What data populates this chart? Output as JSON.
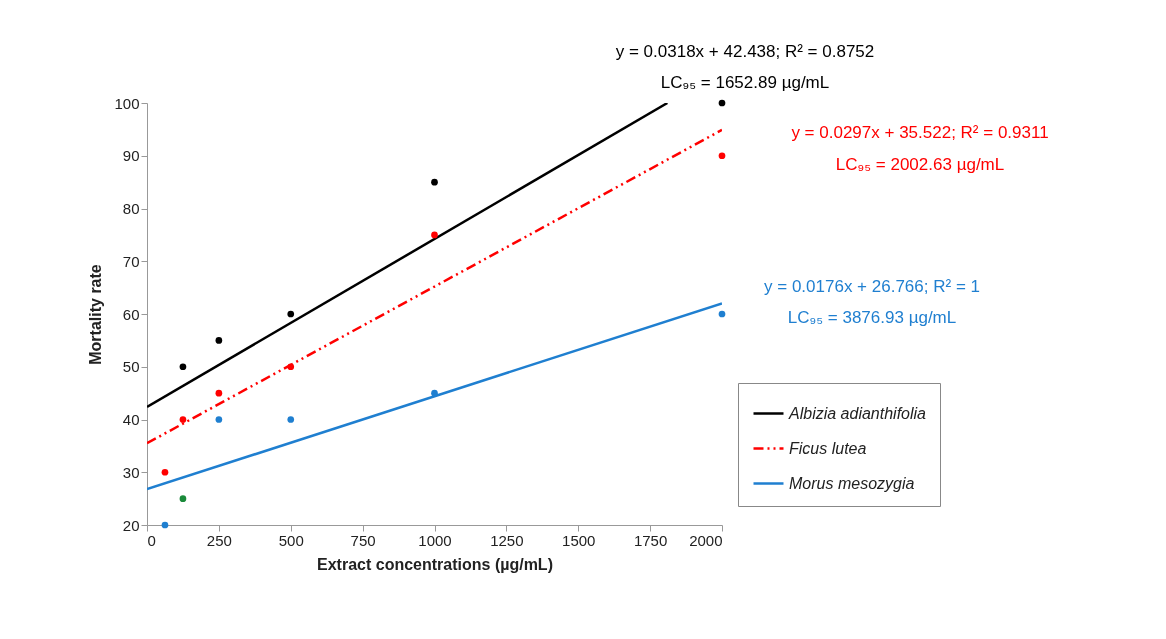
{
  "chart_data": {
    "type": "scatter",
    "xlabel": "Extract concentrations (µg/mL)",
    "ylabel": "Mortality rate",
    "xlim": [
      0,
      2000
    ],
    "xticks": [
      0,
      250,
      500,
      750,
      1000,
      1250,
      1500,
      1750,
      2000
    ],
    "ylim": [
      20,
      100
    ],
    "yticks": [
      20,
      30,
      40,
      50,
      60,
      70,
      80,
      90,
      100
    ],
    "grid": false,
    "legend": "bottom right",
    "marker": "circle",
    "series": [
      {
        "color": "#000000",
        "x": [
          125,
          250,
          500,
          1000,
          2000
        ],
        "values": [
          50,
          55,
          60,
          85,
          100
        ]
      },
      {
        "color": "#ff0000",
        "x": [
          62.5,
          125,
          250,
          500,
          1000,
          2000
        ],
        "values": [
          30,
          40,
          45,
          50,
          75,
          90
        ]
      },
      {
        "x": [
          62.5,
          125,
          250,
          500,
          1000,
          2000
        ],
        "values": [
          20,
          25,
          40,
          40,
          45,
          60
        ],
        "colors": [
          "#1f7fd0",
          "#1a8a3a",
          "#1f7fd0",
          "#1f7fd0",
          "#1f7fd0",
          "#1f7fd0"
        ]
      },
      {
        "type": "line",
        "name": "Albizia adianthifolia",
        "color": "#000000",
        "line_style": "solid",
        "marker": "none",
        "x": [
          0,
          1810
        ],
        "values": [
          42.4,
          100
        ]
      },
      {
        "type": "line",
        "name": "Ficus lutea",
        "color": "#ff0000",
        "line_style": "dashed",
        "marker": "none",
        "x": [
          0,
          2000
        ],
        "values": [
          35.5,
          94.9
        ]
      },
      {
        "type": "line",
        "name": "Morus mesozygia",
        "color": "#1f7fd0",
        "line_style": "solid",
        "marker": "none",
        "x": [
          0,
          2000
        ],
        "values": [
          26.8,
          62
        ]
      }
    ],
    "annotations": [
      "y = 0.0318x + 42.438; R² = 0.8752",
      "LC₉₅ = 1652.89 µg/mL",
      "y = 0.0297x + 35.522; R² = 0.9311",
      "LC₉₅ = 2002.63 µg/mL",
      "y = 0.0176x + 26.766; R² = 1",
      "LC₉₅ = 3876.93 µg/mL"
    ]
  }
}
